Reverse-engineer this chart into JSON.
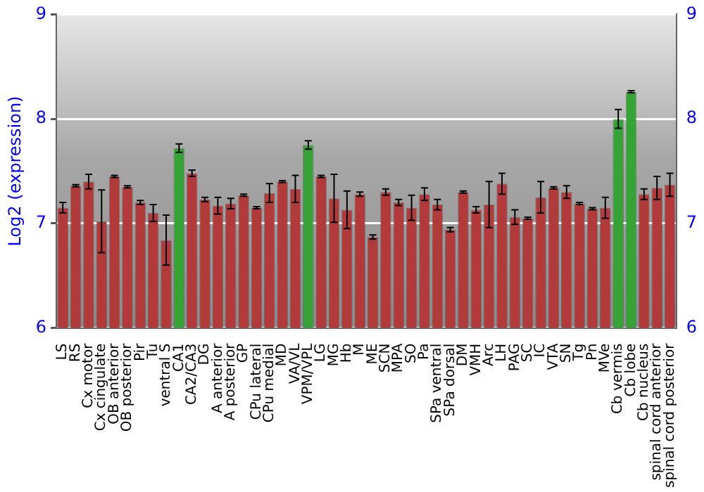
{
  "chart_data": {
    "type": "bar",
    "ylabel": "Log2 (expression)",
    "categories": [
      "LS",
      "RS",
      "Cx motor",
      "Cx cingulate",
      "OB anterior",
      "OB posterior",
      "Pir",
      "Tu",
      "ventral S",
      "CA1",
      "CA2/CA3",
      "DG",
      "A anterior",
      "A posterior",
      "GP",
      "CPu lateral",
      "CPu medial",
      "MD",
      "VA/VL",
      "VPM/VPL",
      "LG",
      "MG",
      "Hb",
      "M",
      "ME",
      "SCN",
      "MPA",
      "SO",
      "Pa",
      "SPa ventral",
      "SPa dorsal",
      "DM",
      "VMH",
      "Arc",
      "LH",
      "PAG",
      "SC",
      "IC",
      "VTA",
      "SN",
      "Tg",
      "Pn",
      "MVe",
      "Cb vermis",
      "Cb lobe",
      "Cb nucleus",
      "spinal cord anterior",
      "spinal cord posterior"
    ],
    "values": [
      7.15,
      7.36,
      7.4,
      7.02,
      7.45,
      7.35,
      7.2,
      7.1,
      6.84,
      7.72,
      7.48,
      7.23,
      7.17,
      7.19,
      7.27,
      7.15,
      7.29,
      7.4,
      7.33,
      7.75,
      7.45,
      7.24,
      7.13,
      7.28,
      6.87,
      7.3,
      7.2,
      7.15,
      7.28,
      7.18,
      6.94,
      7.3,
      7.13,
      7.18,
      7.38,
      7.06,
      7.05,
      7.25,
      7.34,
      7.3,
      7.19,
      7.14,
      7.15,
      8.0,
      8.26,
      7.28,
      7.34,
      7.37
    ],
    "errors": [
      0.05,
      0.01,
      0.07,
      0.3,
      0.01,
      0.01,
      0.02,
      0.08,
      0.24,
      0.04,
      0.03,
      0.02,
      0.08,
      0.05,
      0.01,
      0.01,
      0.09,
      0.01,
      0.13,
      0.04,
      0.01,
      0.23,
      0.18,
      0.02,
      0.02,
      0.03,
      0.03,
      0.12,
      0.06,
      0.05,
      0.02,
      0.01,
      0.03,
      0.22,
      0.1,
      0.07,
      0.01,
      0.15,
      0.01,
      0.06,
      0.01,
      0.01,
      0.1,
      0.09,
      0.01,
      0.05,
      0.11,
      0.11
    ],
    "colors": [
      "#b23a3a",
      "#b23a3a",
      "#b23a3a",
      "#b23a3a",
      "#b23a3a",
      "#b23a3a",
      "#b23a3a",
      "#b23a3a",
      "#b23a3a",
      "#36a336",
      "#b23a3a",
      "#b23a3a",
      "#b23a3a",
      "#b23a3a",
      "#b23a3a",
      "#b23a3a",
      "#b23a3a",
      "#b23a3a",
      "#b23a3a",
      "#36a336",
      "#b23a3a",
      "#b23a3a",
      "#b23a3a",
      "#b23a3a",
      "#b23a3a",
      "#b23a3a",
      "#b23a3a",
      "#b23a3a",
      "#b23a3a",
      "#b23a3a",
      "#b23a3a",
      "#b23a3a",
      "#b23a3a",
      "#b23a3a",
      "#b23a3a",
      "#b23a3a",
      "#b23a3a",
      "#b23a3a",
      "#b23a3a",
      "#b23a3a",
      "#b23a3a",
      "#b23a3a",
      "#b23a3a",
      "#36a336",
      "#36a336",
      "#b23a3a",
      "#b23a3a",
      "#b23a3a"
    ],
    "ylim": [
      6,
      9
    ],
    "yticks": [
      6,
      7,
      8,
      9
    ],
    "y2lim": [
      6,
      9
    ],
    "y2ticks": [
      6,
      7,
      8,
      9
    ],
    "grid": "y"
  }
}
